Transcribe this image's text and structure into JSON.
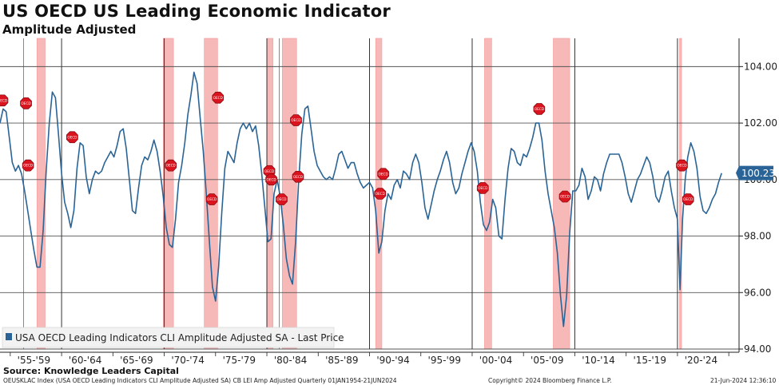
{
  "header": {
    "title": "US OECD US Leading Economic Indicator",
    "subtitle": "Amplitude Adjusted"
  },
  "footer": {
    "source": "Source: Knowledge Leaders Capital",
    "index_line": "OEUSKLAC Index (USA OECD Leading Indicators CLI Amplitude Adjusted SA) CB LEI Amp Adjusted  Quarterly 01JAN1954-21JUN2024",
    "copyright": "Copyright© 2024 Bloomberg Finance L.P.",
    "timestamp": "21-Jun-2024 12:36:10"
  },
  "colors": {
    "line": "#2a6496",
    "recession": "#f7b8b8",
    "recession_edge": "#f59a9a",
    "marker": "#d9141e",
    "last_price_box": "#2a6496"
  },
  "markers": {
    "label": "OECD",
    "icon": "red-octagon-marker-icon"
  },
  "chart_data": {
    "type": "line",
    "title": "US OECD US Leading Economic Indicator",
    "subtitle": "Amplitude Adjusted",
    "legend": "USA OECD Leading Indicators CLI Amplitude Adjusted SA - Last Price",
    "legend_position": "bottom-left",
    "last_price": "100.23",
    "x_range": [
      1954,
      2026
    ],
    "ylim": [
      94,
      105
    ],
    "yticks": [
      94,
      96,
      98,
      100,
      102,
      104
    ],
    "ytick_labels": [
      "94.00",
      "96.00",
      "98.00",
      "100.00",
      "102.00",
      "104.00"
    ],
    "x_tick_labels": [
      "'55-'59",
      "'60-'64",
      "'65-'69",
      "'70-'74",
      "'75-'79",
      "'80-'84",
      "'85-'89",
      "'90-'94",
      "'95-'99",
      "'00-'04",
      "'05-'09",
      "'10-'14",
      "'15-'19",
      "'20-'24"
    ],
    "x_label_centers": [
      1957.3,
      1962.3,
      1967.3,
      1972.3,
      1977.3,
      1982.3,
      1987.3,
      1992.3,
      1997.3,
      2002.3,
      2007.3,
      2012.3,
      2017.3,
      2022.3
    ],
    "x_gridlines": [
      1960,
      1970,
      1980,
      1990,
      2000,
      2010,
      2020
    ],
    "x_minor_gridlines": [
      1956.3,
      1981.2
    ],
    "recessions": [
      [
        1957.6,
        1958.4
      ],
      [
        1969.9,
        1970.9
      ],
      [
        1973.9,
        1975.2
      ],
      [
        1980.0,
        1980.6
      ],
      [
        1981.5,
        1982.9
      ],
      [
        1990.6,
        1991.2
      ],
      [
        2001.2,
        2001.9
      ],
      [
        2007.9,
        2009.5
      ],
      [
        2020.2,
        2020.4
      ]
    ],
    "series": [
      {
        "name": "USA OECD Leading Indicators CLI Amplitude Adjusted SA",
        "points": [
          [
            1954.0,
            102.0
          ],
          [
            1954.3,
            102.5
          ],
          [
            1954.6,
            102.4
          ],
          [
            1954.9,
            101.5
          ],
          [
            1955.2,
            100.6
          ],
          [
            1955.5,
            100.3
          ],
          [
            1955.8,
            100.5
          ],
          [
            1956.1,
            100.2
          ],
          [
            1956.4,
            99.6
          ],
          [
            1956.7,
            98.9
          ],
          [
            1957.0,
            98.2
          ],
          [
            1957.3,
            97.5
          ],
          [
            1957.6,
            96.9
          ],
          [
            1957.9,
            96.9
          ],
          [
            1958.2,
            98.2
          ],
          [
            1958.5,
            100.3
          ],
          [
            1958.8,
            102.0
          ],
          [
            1959.1,
            103.1
          ],
          [
            1959.4,
            102.9
          ],
          [
            1959.7,
            101.6
          ],
          [
            1960.0,
            100.2
          ],
          [
            1960.3,
            99.2
          ],
          [
            1960.6,
            98.8
          ],
          [
            1960.9,
            98.3
          ],
          [
            1961.2,
            98.9
          ],
          [
            1961.5,
            100.4
          ],
          [
            1961.8,
            101.3
          ],
          [
            1962.1,
            101.2
          ],
          [
            1962.4,
            100.1
          ],
          [
            1962.7,
            99.5
          ],
          [
            1963.0,
            100.0
          ],
          [
            1963.3,
            100.3
          ],
          [
            1963.6,
            100.2
          ],
          [
            1963.9,
            100.3
          ],
          [
            1964.2,
            100.6
          ],
          [
            1964.5,
            100.8
          ],
          [
            1964.8,
            101.0
          ],
          [
            1965.1,
            100.8
          ],
          [
            1965.4,
            101.2
          ],
          [
            1965.7,
            101.7
          ],
          [
            1966.0,
            101.8
          ],
          [
            1966.3,
            101.1
          ],
          [
            1966.6,
            100.0
          ],
          [
            1966.9,
            98.9
          ],
          [
            1967.2,
            98.8
          ],
          [
            1967.5,
            99.7
          ],
          [
            1967.8,
            100.5
          ],
          [
            1968.1,
            100.8
          ],
          [
            1968.4,
            100.7
          ],
          [
            1968.7,
            101.0
          ],
          [
            1969.0,
            101.4
          ],
          [
            1969.3,
            101.0
          ],
          [
            1969.6,
            100.3
          ],
          [
            1969.9,
            99.4
          ],
          [
            1970.2,
            98.3
          ],
          [
            1970.5,
            97.7
          ],
          [
            1970.8,
            97.6
          ],
          [
            1971.1,
            98.6
          ],
          [
            1971.4,
            99.9
          ],
          [
            1971.7,
            100.5
          ],
          [
            1972.0,
            101.3
          ],
          [
            1972.3,
            102.3
          ],
          [
            1972.6,
            103.0
          ],
          [
            1972.9,
            103.8
          ],
          [
            1973.2,
            103.4
          ],
          [
            1973.5,
            102.2
          ],
          [
            1973.8,
            101.0
          ],
          [
            1974.1,
            99.5
          ],
          [
            1974.4,
            97.8
          ],
          [
            1974.7,
            96.2
          ],
          [
            1975.0,
            95.7
          ],
          [
            1975.3,
            96.9
          ],
          [
            1975.6,
            98.8
          ],
          [
            1975.9,
            100.4
          ],
          [
            1976.2,
            101.0
          ],
          [
            1976.5,
            100.8
          ],
          [
            1976.8,
            100.6
          ],
          [
            1977.1,
            101.3
          ],
          [
            1977.4,
            101.8
          ],
          [
            1977.7,
            102.0
          ],
          [
            1978.0,
            101.8
          ],
          [
            1978.3,
            102.0
          ],
          [
            1978.6,
            101.7
          ],
          [
            1978.9,
            101.9
          ],
          [
            1979.2,
            101.2
          ],
          [
            1979.5,
            100.2
          ],
          [
            1979.8,
            99.0
          ],
          [
            1980.1,
            97.8
          ],
          [
            1980.4,
            97.9
          ],
          [
            1980.7,
            99.5
          ],
          [
            1981.0,
            100.0
          ],
          [
            1981.3,
            99.4
          ],
          [
            1981.6,
            98.4
          ],
          [
            1981.9,
            97.2
          ],
          [
            1982.2,
            96.6
          ],
          [
            1982.5,
            96.3
          ],
          [
            1982.8,
            97.8
          ],
          [
            1983.1,
            100.0
          ],
          [
            1983.4,
            101.6
          ],
          [
            1983.7,
            102.5
          ],
          [
            1984.0,
            102.6
          ],
          [
            1984.3,
            101.8
          ],
          [
            1984.6,
            101.0
          ],
          [
            1984.9,
            100.5
          ],
          [
            1985.2,
            100.3
          ],
          [
            1985.5,
            100.1
          ],
          [
            1985.8,
            100.0
          ],
          [
            1986.1,
            100.1
          ],
          [
            1986.4,
            100.0
          ],
          [
            1986.7,
            100.4
          ],
          [
            1987.0,
            100.9
          ],
          [
            1987.3,
            101.0
          ],
          [
            1987.6,
            100.7
          ],
          [
            1987.9,
            100.4
          ],
          [
            1988.2,
            100.6
          ],
          [
            1988.5,
            100.6
          ],
          [
            1988.8,
            100.2
          ],
          [
            1989.1,
            99.9
          ],
          [
            1989.4,
            99.7
          ],
          [
            1989.7,
            99.8
          ],
          [
            1990.0,
            99.9
          ],
          [
            1990.3,
            99.7
          ],
          [
            1990.6,
            98.9
          ],
          [
            1990.9,
            97.4
          ],
          [
            1991.2,
            97.8
          ],
          [
            1991.5,
            98.9
          ],
          [
            1991.8,
            99.5
          ],
          [
            1992.1,
            99.3
          ],
          [
            1992.4,
            99.8
          ],
          [
            1992.7,
            100.0
          ],
          [
            1993.0,
            99.7
          ],
          [
            1993.3,
            100.3
          ],
          [
            1993.6,
            100.2
          ],
          [
            1993.9,
            100.0
          ],
          [
            1994.2,
            100.6
          ],
          [
            1994.5,
            100.9
          ],
          [
            1994.8,
            100.6
          ],
          [
            1995.1,
            99.9
          ],
          [
            1995.4,
            99.0
          ],
          [
            1995.7,
            98.6
          ],
          [
            1996.0,
            99.1
          ],
          [
            1996.3,
            99.6
          ],
          [
            1996.6,
            100.0
          ],
          [
            1996.9,
            100.3
          ],
          [
            1997.2,
            100.7
          ],
          [
            1997.5,
            101.0
          ],
          [
            1997.8,
            100.6
          ],
          [
            1998.1,
            99.9
          ],
          [
            1998.4,
            99.5
          ],
          [
            1998.7,
            99.7
          ],
          [
            1999.0,
            100.2
          ],
          [
            1999.3,
            100.6
          ],
          [
            1999.6,
            101.0
          ],
          [
            1999.9,
            101.3
          ],
          [
            2000.2,
            101.0
          ],
          [
            2000.5,
            100.3
          ],
          [
            2000.8,
            99.2
          ],
          [
            2001.1,
            98.4
          ],
          [
            2001.4,
            98.2
          ],
          [
            2001.7,
            98.5
          ],
          [
            2002.0,
            99.3
          ],
          [
            2002.3,
            99.0
          ],
          [
            2002.6,
            98.0
          ],
          [
            2002.9,
            97.9
          ],
          [
            2003.2,
            99.3
          ],
          [
            2003.5,
            100.4
          ],
          [
            2003.8,
            101.1
          ],
          [
            2004.1,
            101.0
          ],
          [
            2004.4,
            100.6
          ],
          [
            2004.7,
            100.5
          ],
          [
            2005.0,
            100.9
          ],
          [
            2005.3,
            100.8
          ],
          [
            2005.6,
            101.1
          ],
          [
            2005.9,
            101.5
          ],
          [
            2006.2,
            102.0
          ],
          [
            2006.5,
            102.0
          ],
          [
            2006.8,
            101.4
          ],
          [
            2007.1,
            100.3
          ],
          [
            2007.4,
            99.5
          ],
          [
            2007.7,
            98.9
          ],
          [
            2008.0,
            98.3
          ],
          [
            2008.3,
            97.4
          ],
          [
            2008.6,
            95.9
          ],
          [
            2008.9,
            94.8
          ],
          [
            2009.2,
            95.9
          ],
          [
            2009.5,
            98.1
          ],
          [
            2009.8,
            99.6
          ],
          [
            2010.1,
            99.6
          ],
          [
            2010.4,
            99.8
          ],
          [
            2010.7,
            100.4
          ],
          [
            2011.0,
            100.1
          ],
          [
            2011.3,
            99.3
          ],
          [
            2011.6,
            99.6
          ],
          [
            2011.9,
            100.1
          ],
          [
            2012.2,
            100.0
          ],
          [
            2012.5,
            99.6
          ],
          [
            2012.8,
            100.2
          ],
          [
            2013.1,
            100.6
          ],
          [
            2013.4,
            100.9
          ],
          [
            2013.7,
            100.9
          ],
          [
            2014.0,
            100.9
          ],
          [
            2014.3,
            100.9
          ],
          [
            2014.6,
            100.6
          ],
          [
            2014.9,
            100.1
          ],
          [
            2015.2,
            99.5
          ],
          [
            2015.5,
            99.2
          ],
          [
            2015.8,
            99.6
          ],
          [
            2016.1,
            100.0
          ],
          [
            2016.4,
            100.2
          ],
          [
            2016.7,
            100.5
          ],
          [
            2017.0,
            100.8
          ],
          [
            2017.3,
            100.6
          ],
          [
            2017.6,
            100.1
          ],
          [
            2017.9,
            99.4
          ],
          [
            2018.2,
            99.2
          ],
          [
            2018.5,
            99.6
          ],
          [
            2018.8,
            100.1
          ],
          [
            2019.1,
            100.3
          ],
          [
            2019.4,
            99.6
          ],
          [
            2019.7,
            99.0
          ],
          [
            2020.0,
            98.6
          ],
          [
            2020.25,
            96.1
          ],
          [
            2020.5,
            98.6
          ],
          [
            2020.75,
            100.0
          ],
          [
            2021.0,
            100.8
          ],
          [
            2021.3,
            101.3
          ],
          [
            2021.6,
            101.0
          ],
          [
            2021.9,
            100.4
          ],
          [
            2022.2,
            99.4
          ],
          [
            2022.5,
            98.9
          ],
          [
            2022.8,
            98.8
          ],
          [
            2023.1,
            99.0
          ],
          [
            2023.4,
            99.3
          ],
          [
            2023.7,
            99.5
          ],
          [
            2024.0,
            99.9
          ],
          [
            2024.3,
            100.23
          ]
        ]
      }
    ],
    "annotations": [
      [
        1954.0,
        102.8
      ],
      [
        1956.3,
        102.7
      ],
      [
        1956.5,
        100.5
      ],
      [
        1960.8,
        101.5
      ],
      [
        1970.4,
        100.5
      ],
      [
        1974.4,
        99.3
      ],
      [
        1975.0,
        102.9
      ],
      [
        1980.0,
        100.3
      ],
      [
        1980.2,
        100.0
      ],
      [
        1981.2,
        99.3
      ],
      [
        1982.6,
        102.1
      ],
      [
        1982.8,
        100.1
      ],
      [
        1990.8,
        99.5
      ],
      [
        1991.1,
        100.2
      ],
      [
        2000.8,
        99.7
      ],
      [
        2006.3,
        102.5
      ],
      [
        2008.8,
        99.4
      ],
      [
        2020.2,
        100.5
      ],
      [
        2020.8,
        99.3
      ]
    ]
  }
}
